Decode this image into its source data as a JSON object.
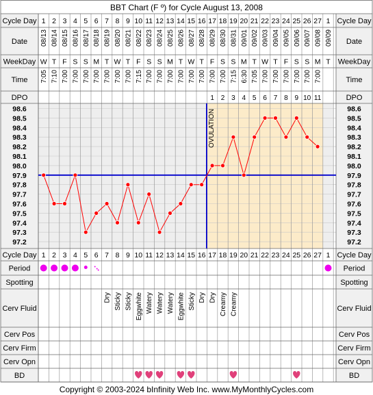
{
  "title": "BBT Chart (F º) for Cycle August 13, 2008",
  "row_labels": {
    "cycle_day": "Cycle Day",
    "date": "Date",
    "weekday": "WeekDay",
    "time": "Time",
    "dpo": "DPO",
    "period": "Period",
    "spotting": "Spotting",
    "cerv_fluid": "Cerv Fluid",
    "cerv_pos": "Cerv Pos",
    "cerv_firm": "Cerv Firm",
    "cerv_opn": "Cerv Opn",
    "bd": "BD"
  },
  "cycle_days": [
    "1",
    "2",
    "3",
    "4",
    "5",
    "6",
    "7",
    "8",
    "9",
    "10",
    "11",
    "12",
    "13",
    "14",
    "15",
    "16",
    "17",
    "18",
    "19",
    "20",
    "21",
    "22",
    "23",
    "24",
    "25",
    "26",
    "27",
    "1"
  ],
  "dates": [
    "08/13",
    "08/14",
    "08/15",
    "08/16",
    "08/17",
    "08/18",
    "08/19",
    "08/20",
    "08/21",
    "08/22",
    "08/23",
    "08/24",
    "08/25",
    "08/26",
    "08/27",
    "08/28",
    "08/29",
    "08/30",
    "08/31",
    "09/01",
    "09/02",
    "09/03",
    "09/04",
    "09/05",
    "09/06",
    "09/07",
    "09/08",
    "09/09"
  ],
  "weekdays": [
    "W",
    "T",
    "F",
    "S",
    "S",
    "M",
    "T",
    "W",
    "T",
    "F",
    "S",
    "S",
    "M",
    "T",
    "W",
    "T",
    "F",
    "S",
    "S",
    "M",
    "T",
    "W",
    "T",
    "F",
    "S",
    "S",
    "M",
    "T"
  ],
  "times": [
    "7:05",
    "7:10",
    "7:00",
    "7:00",
    "7:00",
    "7:00",
    "7:00",
    "7:00",
    "7:00",
    "7:15",
    "7:00",
    "7:00",
    "7:00",
    "7:00",
    "7:00",
    "7:00",
    "7:00",
    "7:00",
    "7:15",
    "6:30",
    "7:05",
    "7:00",
    "7:00",
    "7:00",
    "7:00",
    "7:00",
    "7:00",
    ""
  ],
  "dpo": [
    "",
    "",
    "",
    "",
    "",
    "",
    "",
    "",
    "",
    "",
    "",
    "",
    "",
    "",
    "",
    "",
    "1",
    "2",
    "3",
    "4",
    "5",
    "6",
    "7",
    "8",
    "9",
    "10",
    "11",
    ""
  ],
  "temp_labels": [
    "98.6",
    "98.5",
    "98.4",
    "98.3",
    "98.2",
    "98.1",
    "98.0",
    "97.9",
    "97.8",
    "97.7",
    "97.6",
    "97.5",
    "97.4",
    "97.3",
    "97.2"
  ],
  "ovulation_label": "OVULATION",
  "cerv_fluid": [
    "",
    "",
    "",
    "",
    "",
    "",
    "Dry",
    "Sticky",
    "Sticky",
    "Eggwhite",
    "Watery",
    "Watery",
    "Watery",
    "Eggwhite",
    "Sticky",
    "Dry",
    "Dry",
    "Creamy",
    "Creamy",
    "",
    "",
    "",
    "",
    "",
    "",
    "",
    "",
    ""
  ],
  "period": [
    "heavy",
    "heavy",
    "heavy",
    "heavy",
    "light",
    "spotting",
    "",
    "",
    "",
    "",
    "",
    "",
    "",
    "",
    "",
    "",
    "",
    "",
    "",
    "",
    "",
    "",
    "",
    "",
    "",
    "",
    "",
    "heavy"
  ],
  "bd": [
    false,
    false,
    false,
    false,
    false,
    false,
    false,
    false,
    false,
    true,
    true,
    true,
    false,
    true,
    true,
    false,
    false,
    false,
    true,
    false,
    false,
    false,
    false,
    false,
    true,
    false,
    false,
    false
  ],
  "copyright": "Copyright © 2003-2024 bInfinity Web Inc.    www.MyMonthlyCycles.com",
  "colors": {
    "line": "#ff0000",
    "coverline": "#0000cc",
    "luteal_fill": "#fcebc9",
    "period": "#ee00ee",
    "heart": "#e0407a",
    "grid": "#9a9a9a",
    "label_bg": "#f0f0f0"
  },
  "chart_data": {
    "type": "line",
    "title": "BBT Chart (F º) for Cycle August 13, 2008",
    "xlabel": "Cycle Day",
    "ylabel": "",
    "x": [
      1,
      2,
      3,
      4,
      5,
      6,
      7,
      8,
      9,
      10,
      11,
      12,
      13,
      14,
      15,
      16,
      17,
      18,
      19,
      20,
      21,
      22,
      23,
      24,
      25,
      26,
      27
    ],
    "series": [
      {
        "values": [
          97.9,
          97.6,
          97.6,
          97.9,
          97.3,
          97.5,
          97.6,
          97.4,
          97.8,
          97.4,
          97.7,
          97.3,
          97.5,
          97.6,
          97.8,
          97.8,
          98.0,
          98.0,
          98.3,
          97.9,
          98.3,
          98.5,
          98.5,
          98.3,
          98.5,
          98.3,
          98.2
        ]
      }
    ],
    "coverline": 97.9,
    "ovulation_day": 16,
    "ylim": [
      97.2,
      98.6
    ],
    "grid": true
  }
}
